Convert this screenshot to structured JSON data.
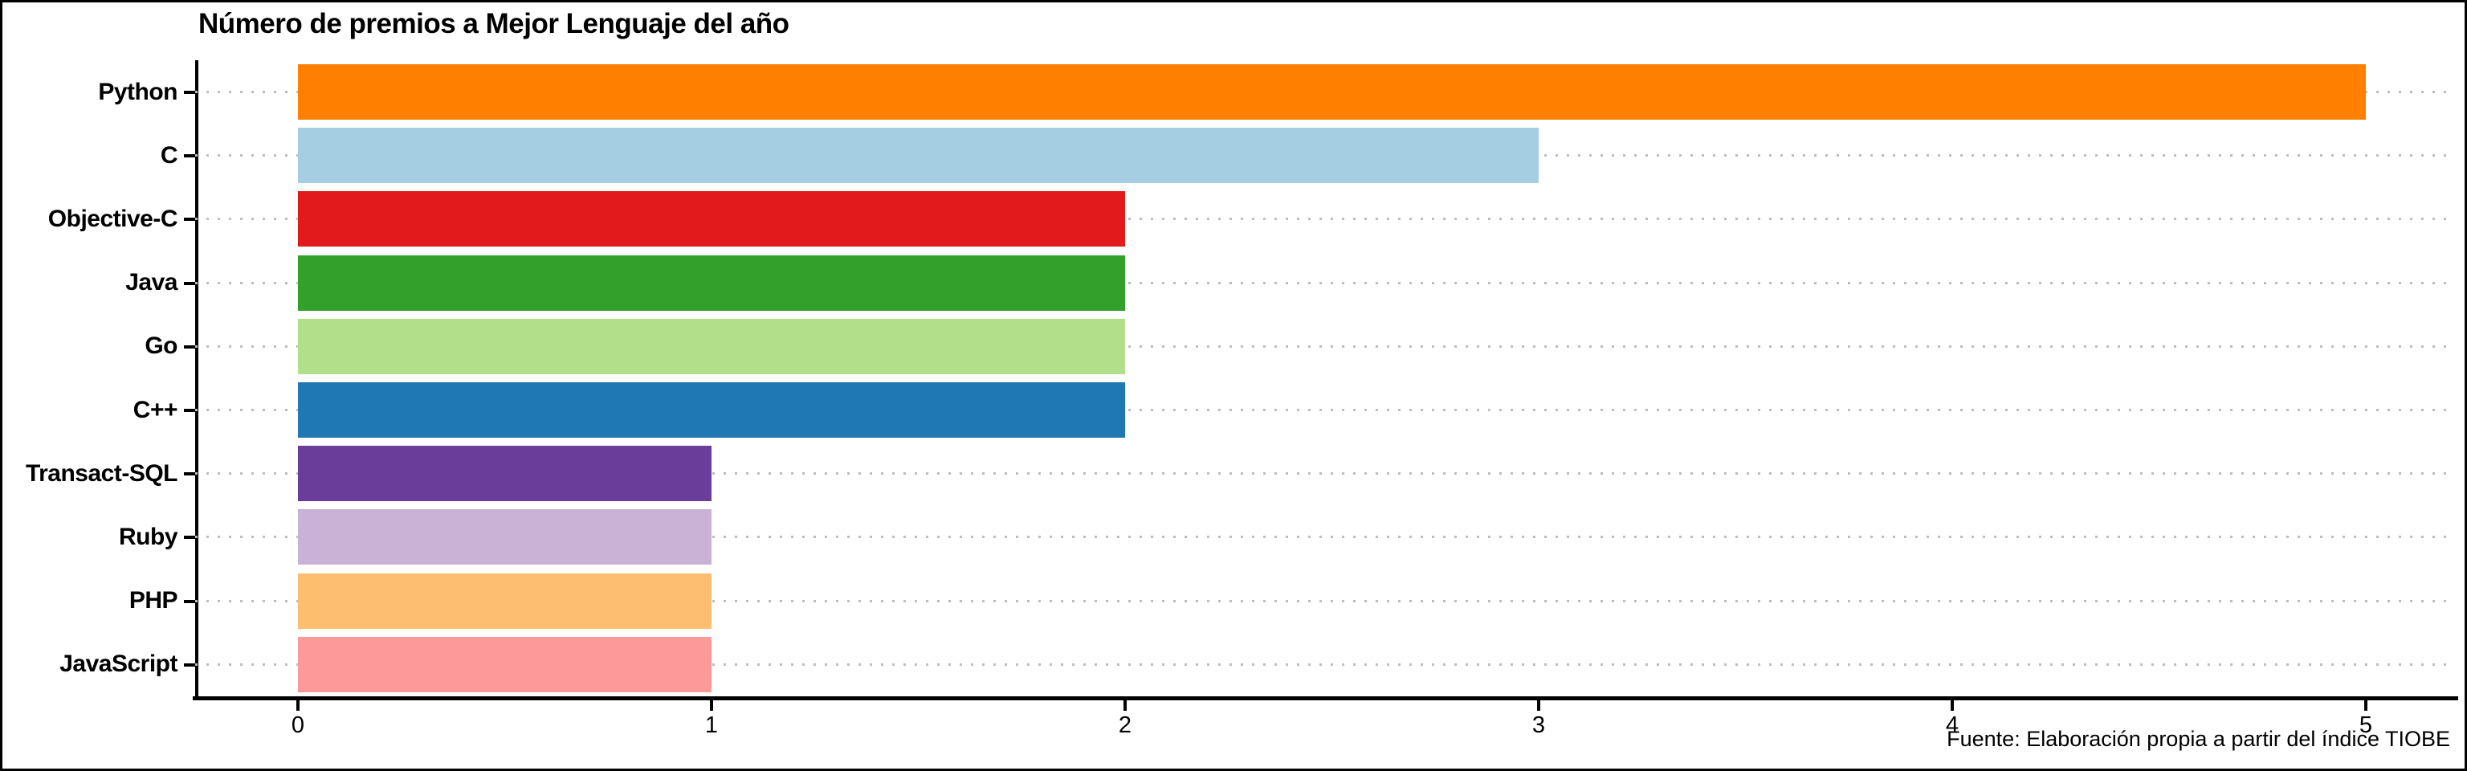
{
  "title": "Número de premios a Mejor Lenguaje del año",
  "source_note": "Fuente: Elaboración propia a partir del índice TIOBE",
  "chart_data": {
    "type": "bar",
    "orientation": "horizontal",
    "title": "Número de premios a Mejor Lenguaje del año",
    "categories": [
      "Python",
      "C",
      "Objective-C",
      "Java",
      "Go",
      "C++",
      "Transact-SQL",
      "Ruby",
      "PHP",
      "JavaScript"
    ],
    "values": [
      5,
      3,
      2,
      2,
      2,
      2,
      1,
      1,
      1,
      1
    ],
    "colors": [
      "#FF7F00",
      "#A6CEE3",
      "#E31A1C",
      "#33A02C",
      "#B2DF8A",
      "#1F78B4",
      "#6A3D9A",
      "#CAB2D6",
      "#FDBF6F",
      "#FB9A99"
    ],
    "xlabel": "",
    "ylabel": "",
    "xlim": [
      0,
      5
    ],
    "x_ticks": [
      "0",
      "1",
      "2",
      "3",
      "4",
      "5"
    ],
    "grid": "dotted horizontal line per category, light gray",
    "legend": "none",
    "axis_color": "#000000",
    "gridline_color": "#bdbdbd",
    "source": "Fuente: Elaboración propia a partir del índice TIOBE"
  }
}
